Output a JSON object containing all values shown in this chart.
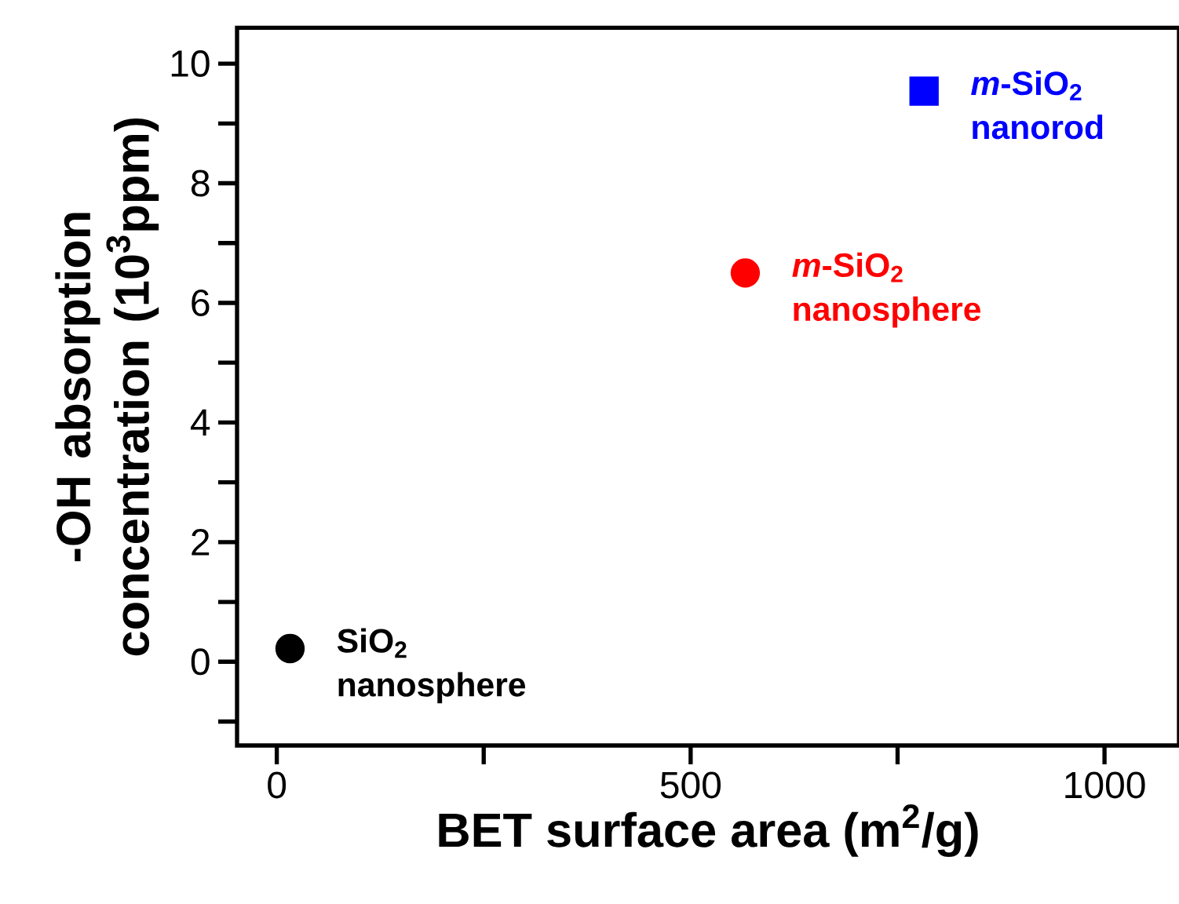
{
  "chart_data": {
    "type": "scatter",
    "xlabel": "BET surface area (m$^{2}$/g)",
    "ylabel": "-OH absorption concentration (10$^{3}$ppm)",
    "xlim": [
      -48,
      1090
    ],
    "ylim": [
      -1.4,
      10.6
    ],
    "xticks": [
      0,
      {
        "value": 250,
        "label": null
      },
      500,
      {
        "value": 750,
        "label": null
      },
      1000
    ],
    "yticks": [
      {
        "value": -1,
        "label": null
      },
      0,
      {
        "value": 1,
        "label": null
      },
      2,
      {
        "value": 3,
        "label": null
      },
      4,
      {
        "value": 5,
        "label": null
      },
      6,
      {
        "value": 7,
        "label": null
      },
      8,
      {
        "value": 9,
        "label": null
      },
      10
    ],
    "series": [
      {
        "name": "SiO$_{2}$ nanosphere",
        "color": "#000000",
        "marker": "circle",
        "x": [
          16
        ],
        "values": [
          0.22
        ]
      },
      {
        "name": "*m*-SiO$_{2}$ nanosphere",
        "color": "#ff0000",
        "marker": "circle",
        "x": [
          566
        ],
        "values": [
          6.5
        ]
      },
      {
        "name": "*m*-SiO$_{2}$ nanorod",
        "color": "#0000ff",
        "marker": "square",
        "x": [
          782
        ],
        "values": [
          9.54
        ]
      }
    ]
  }
}
